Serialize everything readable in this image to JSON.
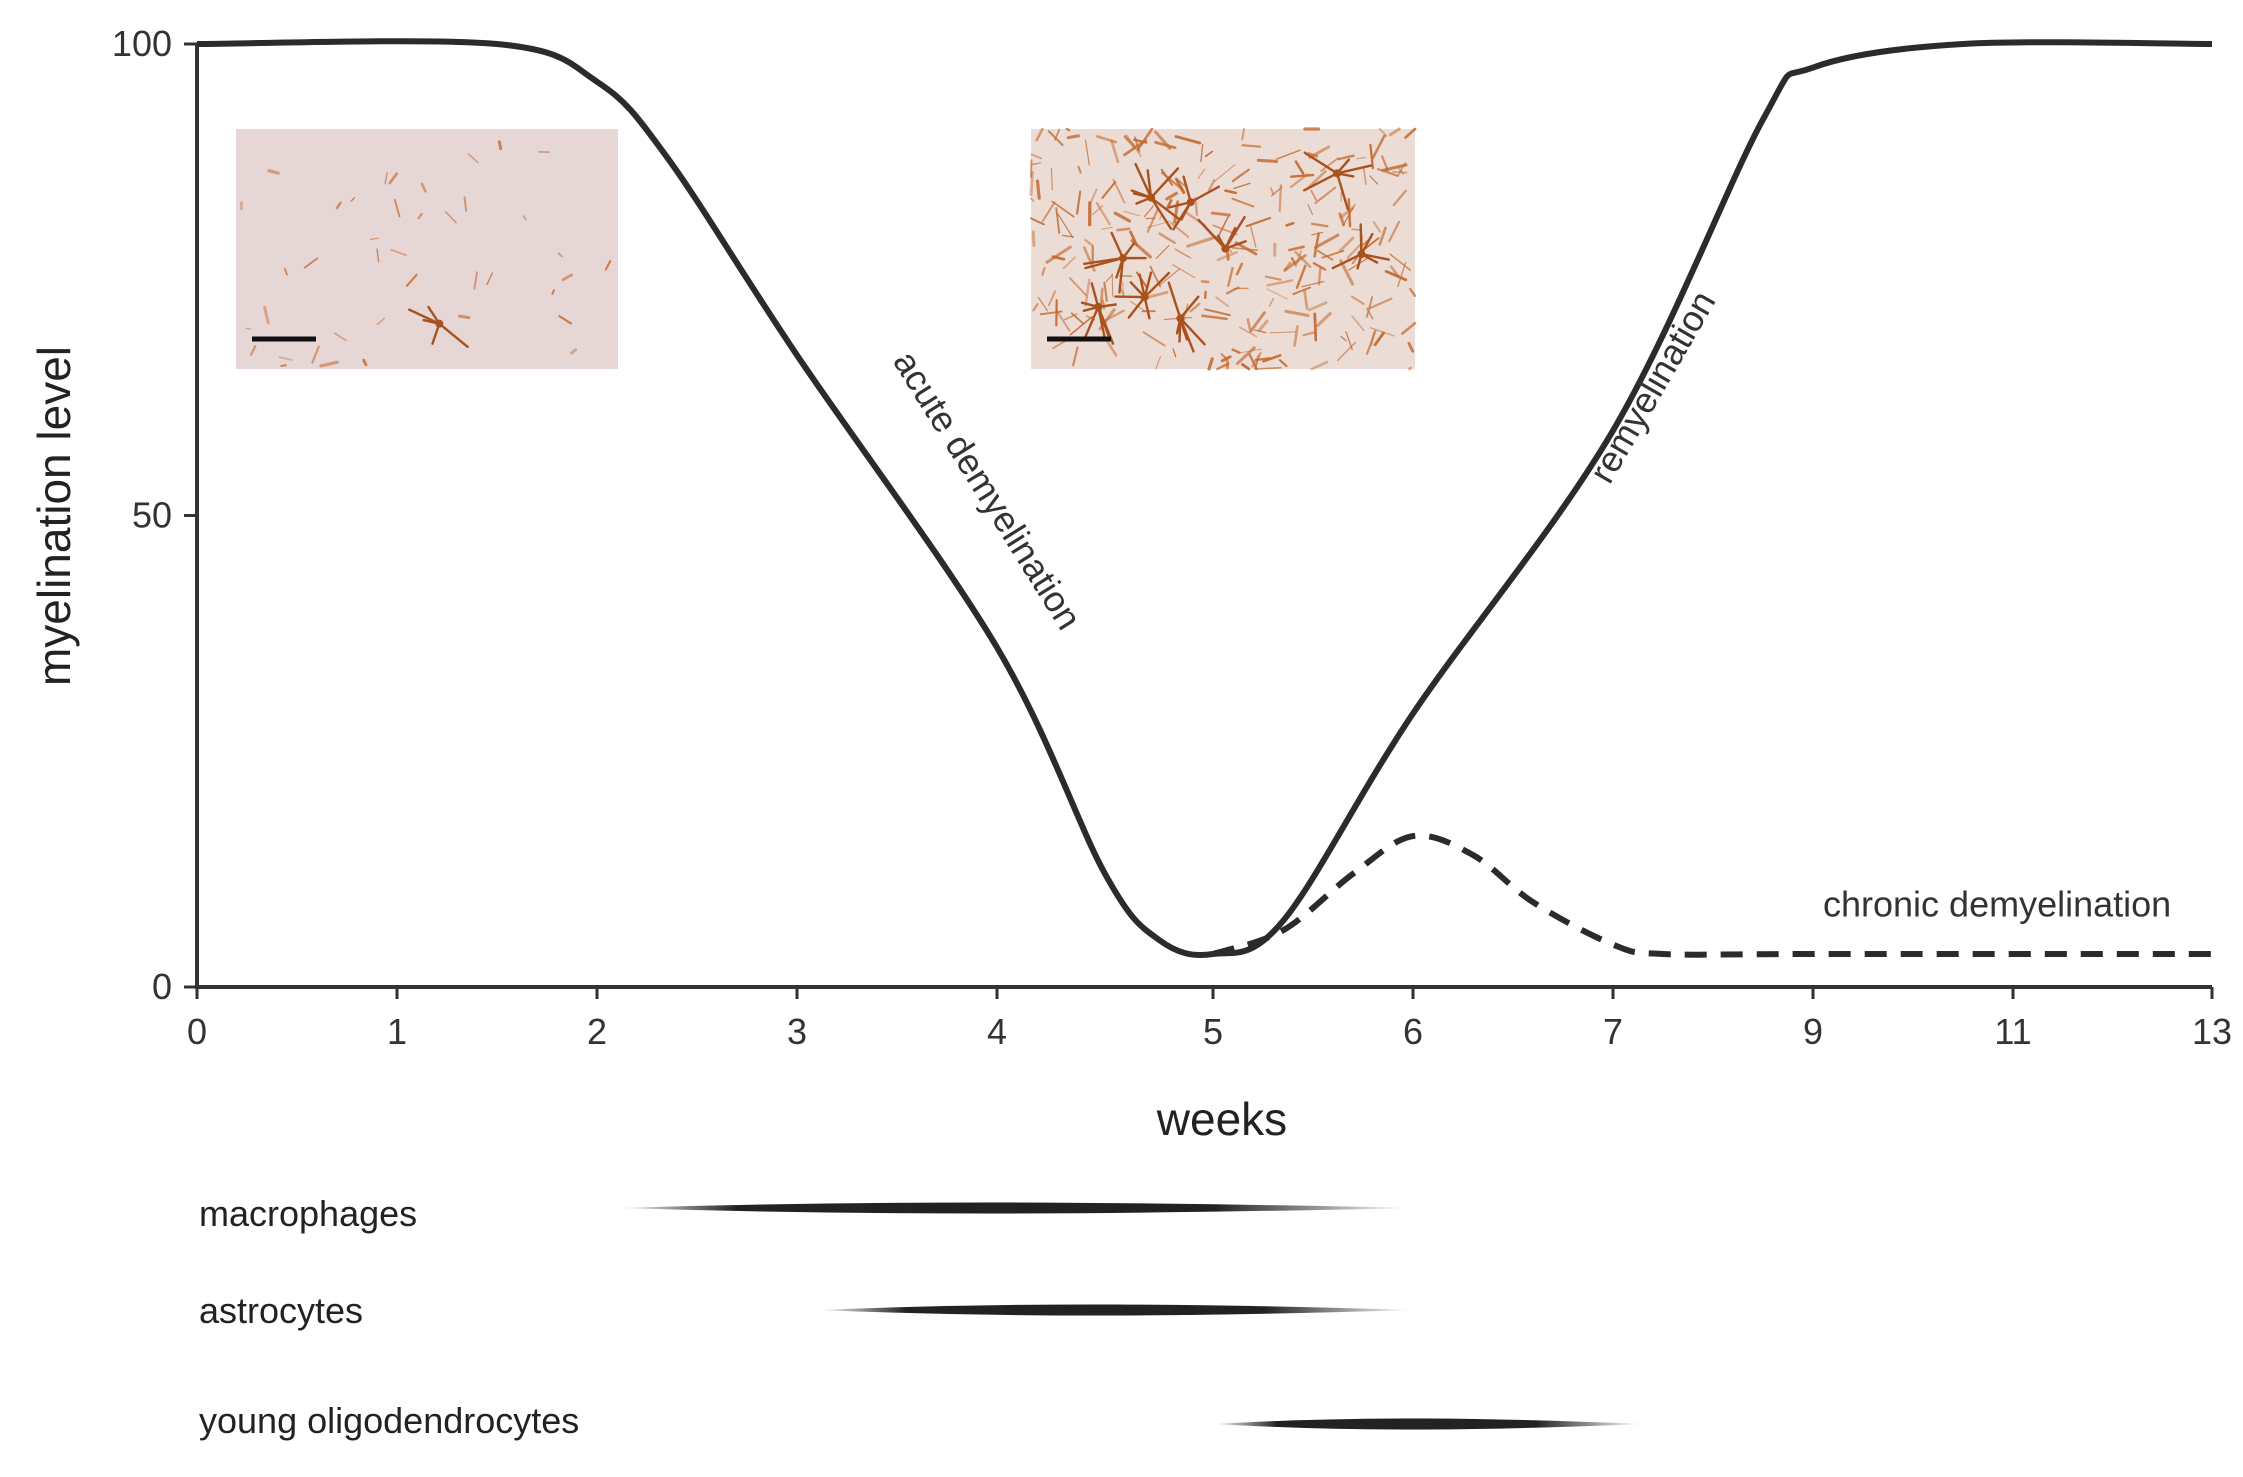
{
  "chart_data": {
    "type": "line",
    "xlabel": "weeks",
    "ylabel": "myelination level",
    "x_ticks": [
      "0",
      "1",
      "2",
      "3",
      "4",
      "5",
      "6",
      "7",
      "9",
      "11",
      "13"
    ],
    "y_ticks": [
      0,
      50,
      100
    ],
    "ylim": [
      0,
      100
    ],
    "grid": false,
    "series": [
      {
        "name": "",
        "style": "solid",
        "points": [
          [
            0,
            100
          ],
          [
            1.5,
            100
          ],
          [
            2,
            96
          ],
          [
            2.35,
            88
          ],
          [
            3,
            67
          ],
          [
            4,
            36
          ],
          [
            4.5,
            12
          ],
          [
            4.75,
            5
          ],
          [
            5,
            3.5
          ],
          [
            5.35,
            7
          ],
          [
            6,
            29
          ],
          [
            7,
            59
          ],
          [
            8.5,
            92
          ],
          [
            9,
            97.5
          ],
          [
            10.5,
            100
          ],
          [
            13,
            100
          ]
        ]
      },
      {
        "name": "",
        "style": "dashed",
        "points": [
          [
            5,
            3.5
          ],
          [
            5.35,
            6
          ],
          [
            5.7,
            12
          ],
          [
            6,
            16
          ],
          [
            6.3,
            14
          ],
          [
            6.6,
            9
          ],
          [
            7,
            4.5
          ],
          [
            7.5,
            3.5
          ],
          [
            9,
            3.5
          ],
          [
            13,
            3.5
          ]
        ]
      }
    ],
    "annotations": [
      {
        "text": "acute demyelination",
        "x": 3.9,
        "y": 52,
        "angle": 58
      },
      {
        "text": "remyelination",
        "x": 7.5,
        "y": 63,
        "angle": -60
      },
      {
        "text": "chronic demyelination",
        "x": 9.1,
        "y": 7.5,
        "angle": 0
      }
    ],
    "cell_timeline": [
      {
        "label": "macrophages",
        "start_week": 2.1,
        "end_week": 6.0
      },
      {
        "label": "astrocytes",
        "start_week": 3.1,
        "end_week": 6.0
      },
      {
        "label": "young oligodendrocytes",
        "start_week": 5.0,
        "end_week": 7.3
      }
    ],
    "insets": [
      {
        "name": "inset-low-staining",
        "density": "sparse",
        "color": "#c8743f",
        "background": "#e6d6d6"
      },
      {
        "name": "inset-high-staining",
        "density": "dense",
        "color": "#c26a2e",
        "background": "#ecdcd6"
      }
    ]
  }
}
